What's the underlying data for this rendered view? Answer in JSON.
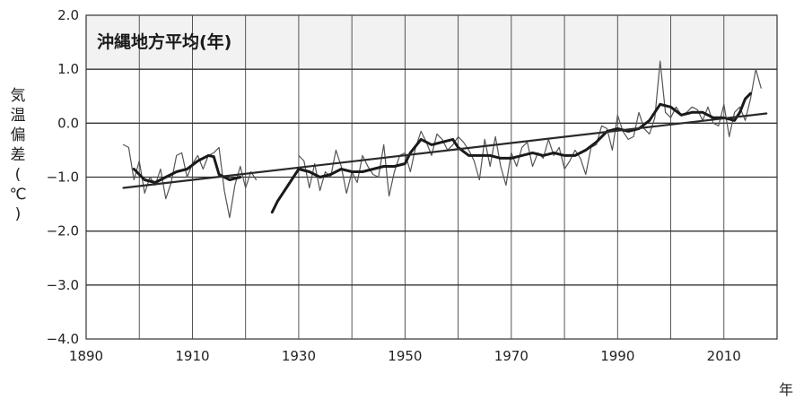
{
  "chart_data": {
    "type": "line",
    "title": "沖縄地方平均(年)",
    "xlabel": "年",
    "ylabel": [
      "気",
      "温",
      "偏",
      "差",
      "(",
      "℃",
      ")"
    ],
    "xlim": [
      1890,
      2020
    ],
    "ylim": [
      -4.0,
      2.0
    ],
    "x_ticks": [
      1890,
      1910,
      1930,
      1950,
      1970,
      1990,
      2010
    ],
    "x_tick_labels": [
      "1890",
      "1910",
      "1930",
      "1950",
      "1970",
      "1990",
      "2010"
    ],
    "y_ticks": [
      2.0,
      1.0,
      0.0,
      -1.0,
      -2.0,
      -3.0,
      -4.0
    ],
    "y_tick_labels": [
      "2.0",
      "1.0",
      "0.0",
      "−1.0",
      "−2.0",
      "−3.0",
      "−4.0"
    ],
    "grid": true,
    "series": [
      {
        "key": "annual",
        "style": "thin",
        "color": "#555555",
        "segments": [
          [
            [
              1897,
              -0.4
            ],
            [
              1898,
              -0.45
            ],
            [
              1899,
              -1.05
            ],
            [
              1900,
              -0.7
            ],
            [
              1901,
              -1.3
            ],
            [
              1902,
              -1.0
            ],
            [
              1903,
              -1.15
            ],
            [
              1904,
              -0.85
            ],
            [
              1905,
              -1.4
            ],
            [
              1906,
              -1.1
            ],
            [
              1907,
              -0.6
            ],
            [
              1908,
              -0.55
            ],
            [
              1909,
              -1.0
            ],
            [
              1910,
              -0.75
            ],
            [
              1911,
              -0.6
            ],
            [
              1912,
              -0.85
            ],
            [
              1913,
              -0.6
            ],
            [
              1914,
              -0.55
            ],
            [
              1915,
              -0.45
            ],
            [
              1916,
              -1.25
            ],
            [
              1917,
              -1.75
            ],
            [
              1918,
              -1.15
            ],
            [
              1919,
              -0.8
            ],
            [
              1920,
              -1.2
            ],
            [
              1921,
              -0.9
            ],
            [
              1922,
              -1.05
            ]
          ],
          [
            [
              1930,
              -0.6
            ],
            [
              1931,
              -0.7
            ],
            [
              1932,
              -1.2
            ],
            [
              1933,
              -0.75
            ],
            [
              1934,
              -1.25
            ],
            [
              1935,
              -0.9
            ],
            [
              1936,
              -1.0
            ],
            [
              1937,
              -0.5
            ],
            [
              1938,
              -0.8
            ],
            [
              1939,
              -1.3
            ],
            [
              1940,
              -0.9
            ],
            [
              1941,
              -1.1
            ],
            [
              1942,
              -0.6
            ],
            [
              1943,
              -0.8
            ],
            [
              1944,
              -0.95
            ],
            [
              1945,
              -1.0
            ],
            [
              1946,
              -0.4
            ],
            [
              1947,
              -1.35
            ],
            [
              1948,
              -0.9
            ],
            [
              1949,
              -0.6
            ],
            [
              1950,
              -0.55
            ],
            [
              1951,
              -0.9
            ],
            [
              1952,
              -0.45
            ],
            [
              1953,
              -0.15
            ],
            [
              1954,
              -0.35
            ],
            [
              1955,
              -0.6
            ],
            [
              1956,
              -0.2
            ],
            [
              1957,
              -0.3
            ],
            [
              1958,
              -0.5
            ],
            [
              1959,
              -0.4
            ],
            [
              1960,
              -0.25
            ],
            [
              1961,
              -0.35
            ],
            [
              1962,
              -0.5
            ],
            [
              1963,
              -0.7
            ],
            [
              1964,
              -1.05
            ],
            [
              1965,
              -0.3
            ],
            [
              1966,
              -0.8
            ],
            [
              1967,
              -0.25
            ],
            [
              1968,
              -0.8
            ],
            [
              1969,
              -1.15
            ],
            [
              1970,
              -0.55
            ],
            [
              1971,
              -0.8
            ],
            [
              1972,
              -0.45
            ],
            [
              1973,
              -0.35
            ],
            [
              1974,
              -0.8
            ],
            [
              1975,
              -0.55
            ],
            [
              1976,
              -0.65
            ],
            [
              1977,
              -0.3
            ],
            [
              1978,
              -0.6
            ],
            [
              1979,
              -0.45
            ],
            [
              1980,
              -0.85
            ],
            [
              1981,
              -0.7
            ],
            [
              1982,
              -0.5
            ],
            [
              1983,
              -0.65
            ],
            [
              1984,
              -0.95
            ],
            [
              1985,
              -0.45
            ],
            [
              1986,
              -0.4
            ],
            [
              1987,
              -0.05
            ],
            [
              1988,
              -0.1
            ],
            [
              1989,
              -0.5
            ],
            [
              1990,
              0.15
            ],
            [
              1991,
              -0.15
            ],
            [
              1992,
              -0.3
            ],
            [
              1993,
              -0.25
            ],
            [
              1994,
              0.2
            ],
            [
              1995,
              -0.1
            ],
            [
              1996,
              -0.2
            ],
            [
              1997,
              0.1
            ],
            [
              1998,
              1.15
            ],
            [
              1999,
              0.2
            ],
            [
              2000,
              0.1
            ],
            [
              2001,
              0.3
            ],
            [
              2002,
              0.15
            ],
            [
              2003,
              0.2
            ],
            [
              2004,
              0.3
            ],
            [
              2005,
              0.25
            ],
            [
              2006,
              0.05
            ],
            [
              2007,
              0.3
            ],
            [
              2008,
              0.0
            ],
            [
              2009,
              -0.05
            ],
            [
              2010,
              0.35
            ],
            [
              2011,
              -0.25
            ],
            [
              2012,
              0.2
            ],
            [
              2013,
              0.3
            ],
            [
              2014,
              0.05
            ],
            [
              2015,
              0.45
            ],
            [
              2016,
              1.0
            ],
            [
              2017,
              0.65
            ]
          ]
        ]
      },
      {
        "key": "moving_average",
        "style": "thick",
        "color": "#1a1a1a",
        "segments": [
          [
            [
              1899,
              -0.85
            ],
            [
              1901,
              -1.05
            ],
            [
              1903,
              -1.1
            ],
            [
              1905,
              -1.0
            ],
            [
              1907,
              -0.9
            ],
            [
              1909,
              -0.85
            ],
            [
              1911,
              -0.7
            ],
            [
              1913,
              -0.6
            ],
            [
              1914,
              -0.62
            ],
            [
              1915,
              -0.95
            ],
            [
              1917,
              -1.05
            ],
            [
              1919,
              -1.0
            ]
          ],
          [
            [
              1925,
              -1.65
            ],
            [
              1926,
              -1.45
            ],
            [
              1928,
              -1.15
            ],
            [
              1930,
              -0.85
            ],
            [
              1932,
              -0.9
            ],
            [
              1934,
              -1.0
            ],
            [
              1936,
              -0.95
            ],
            [
              1938,
              -0.85
            ],
            [
              1940,
              -0.9
            ],
            [
              1942,
              -0.9
            ],
            [
              1944,
              -0.85
            ],
            [
              1946,
              -0.8
            ],
            [
              1948,
              -0.8
            ],
            [
              1950,
              -0.75
            ],
            [
              1951,
              -0.55
            ],
            [
              1953,
              -0.3
            ],
            [
              1955,
              -0.4
            ],
            [
              1957,
              -0.35
            ],
            [
              1959,
              -0.3
            ],
            [
              1960,
              -0.45
            ],
            [
              1962,
              -0.6
            ],
            [
              1964,
              -0.6
            ],
            [
              1966,
              -0.6
            ],
            [
              1968,
              -0.65
            ],
            [
              1970,
              -0.65
            ],
            [
              1972,
              -0.6
            ],
            [
              1974,
              -0.55
            ],
            [
              1976,
              -0.6
            ],
            [
              1978,
              -0.55
            ],
            [
              1980,
              -0.6
            ],
            [
              1982,
              -0.6
            ],
            [
              1984,
              -0.5
            ],
            [
              1986,
              -0.35
            ],
            [
              1988,
              -0.15
            ],
            [
              1990,
              -0.1
            ],
            [
              1992,
              -0.15
            ],
            [
              1994,
              -0.1
            ],
            [
              1996,
              0.05
            ],
            [
              1998,
              0.35
            ],
            [
              2000,
              0.3
            ],
            [
              2002,
              0.15
            ],
            [
              2004,
              0.2
            ],
            [
              2006,
              0.2
            ],
            [
              2008,
              0.1
            ],
            [
              2010,
              0.1
            ],
            [
              2012,
              0.05
            ],
            [
              2013,
              0.2
            ],
            [
              2014,
              0.45
            ],
            [
              2015,
              0.55
            ]
          ]
        ]
      },
      {
        "key": "trend",
        "style": "trend",
        "color": "#2a2a2a",
        "segments": [
          [
            [
              1897,
              -1.2
            ],
            [
              2018,
              0.18
            ]
          ]
        ]
      }
    ]
  }
}
